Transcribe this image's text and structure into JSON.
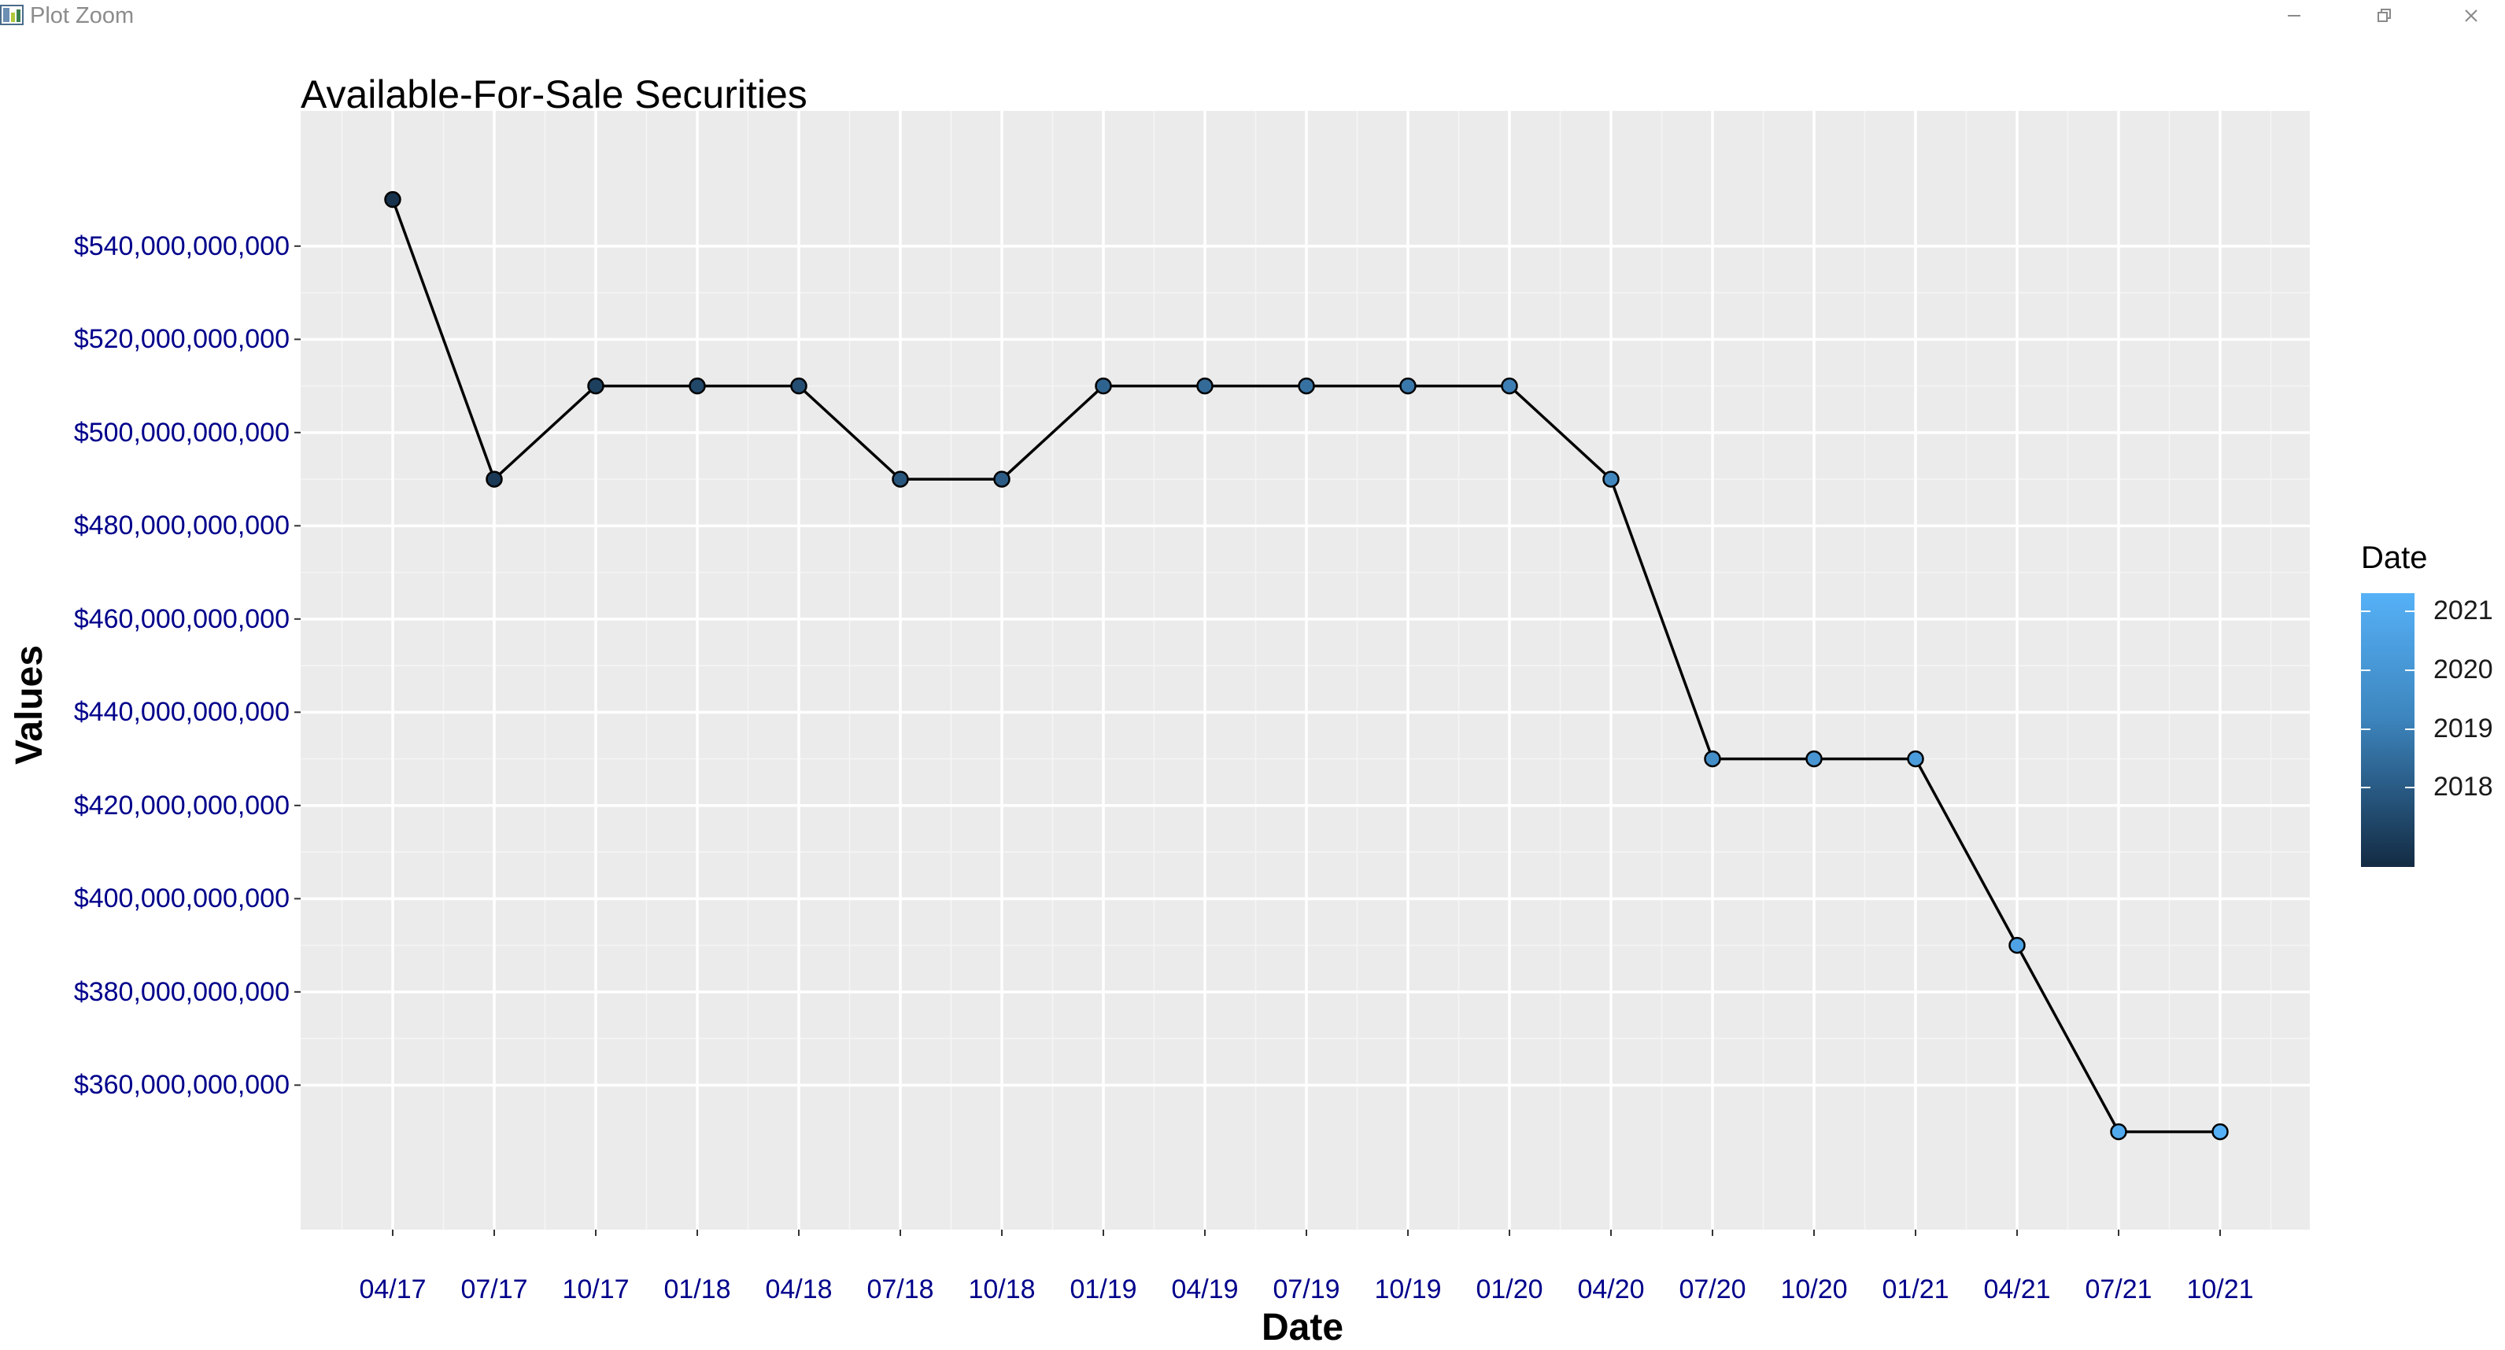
{
  "window": {
    "title": "Plot Zoom",
    "minimize_label": "—",
    "maximize_label": "❐",
    "close_label": "✕"
  },
  "chart_data": {
    "type": "line",
    "title": "Available-For-Sale Securities",
    "xlabel": "Date",
    "ylabel": "Values",
    "categories": [
      "04/17",
      "07/17",
      "10/17",
      "01/18",
      "04/18",
      "07/18",
      "10/18",
      "01/19",
      "04/19",
      "07/19",
      "10/19",
      "01/20",
      "04/20",
      "07/20",
      "10/20",
      "01/21",
      "04/21",
      "07/21",
      "10/21"
    ],
    "values": [
      550000000000,
      490000000000,
      510000000000,
      510000000000,
      510000000000,
      490000000000,
      490000000000,
      510000000000,
      510000000000,
      510000000000,
      510000000000,
      510000000000,
      490000000000,
      430000000000,
      430000000000,
      430000000000,
      390000000000,
      350000000000,
      350000000000
    ],
    "ylim": [
      329000000000,
      569000000000
    ],
    "yticks": [
      360000000000,
      380000000000,
      400000000000,
      420000000000,
      440000000000,
      460000000000,
      480000000000,
      500000000000,
      520000000000,
      540000000000
    ],
    "ytick_labels": [
      "$360,000,000,000",
      "$380,000,000,000",
      "$400,000,000,000",
      "$420,000,000,000",
      "$440,000,000,000",
      "$460,000,000,000",
      "$480,000,000,000",
      "$500,000,000,000",
      "$520,000,000,000",
      "$540,000,000,000"
    ],
    "grid": true,
    "point_fill": "date gradient",
    "legend": {
      "title": "Date",
      "position": "right",
      "labels": [
        "2021",
        "2020",
        "2019",
        "2018"
      ],
      "gradient_low": "#132B43",
      "gradient_high": "#56B1F7"
    },
    "colors": {
      "panel_background": "#EBEBEB",
      "grid": "#FFFFFF",
      "line": "#000000",
      "tick_text": "#00008B"
    }
  }
}
